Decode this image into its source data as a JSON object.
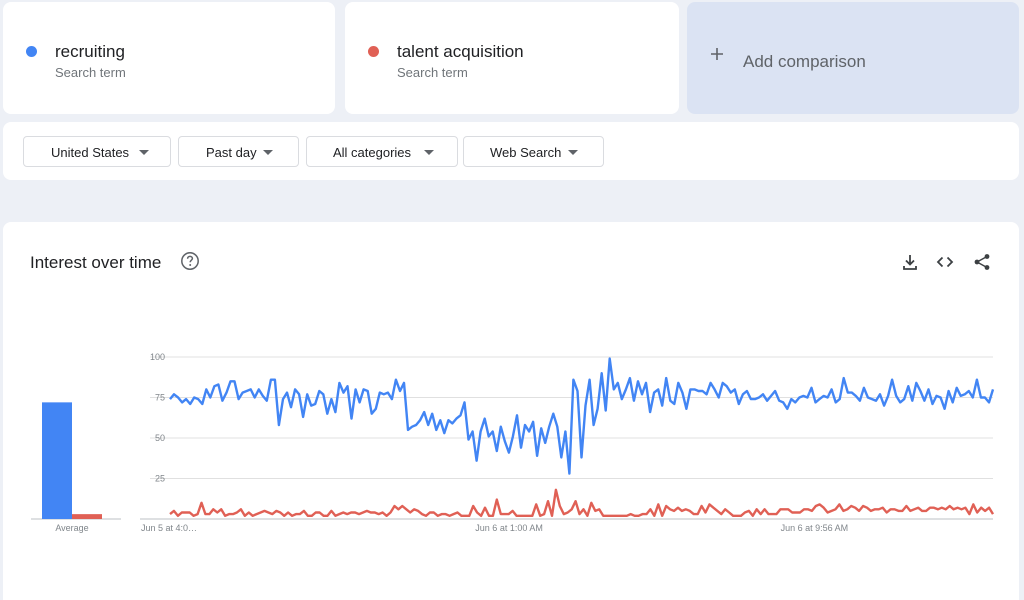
{
  "terms": [
    {
      "name": "recruiting",
      "subtitle": "Search term",
      "color": "#4285f4"
    },
    {
      "name": "talent acquisition",
      "subtitle": "Search term",
      "color": "#e06055"
    }
  ],
  "add_comparison": {
    "label": "Add comparison",
    "icon": "plus-icon"
  },
  "filters": {
    "region": "United States",
    "time": "Past day",
    "category": "All categories",
    "property": "Web Search"
  },
  "chart_panel": {
    "title": "Interest over time",
    "help_icon": "help-circle-icon",
    "actions": [
      "download-icon",
      "embed-icon",
      "share-icon"
    ]
  },
  "chart_data": {
    "type": "line",
    "ylim": [
      0,
      100
    ],
    "y_ticks": [
      25,
      50,
      75,
      100
    ],
    "x_tick_labels": [
      "Jun 5 at 4:0…",
      "Jun 6 at 1:00 AM",
      "Jun 6 at 9:56 AM"
    ],
    "x_tick_positions": [
      0,
      41.2,
      78.3
    ],
    "grid": true,
    "average": {
      "label": "Average",
      "values": [
        72,
        3
      ]
    },
    "series": [
      {
        "name": "recruiting",
        "color": "#4285f4",
        "values": [
          74,
          77,
          75,
          72,
          74,
          71,
          75,
          74,
          71,
          80,
          75,
          82,
          83,
          73,
          78,
          85,
          85,
          74,
          78,
          79,
          80,
          75,
          80,
          76,
          73,
          86,
          86,
          58,
          74,
          78,
          69,
          80,
          77,
          63,
          77,
          70,
          71,
          79,
          77,
          65,
          74,
          66,
          84,
          78,
          82,
          62,
          80,
          72,
          80,
          79,
          65,
          68,
          78,
          77,
          78,
          74,
          86,
          79,
          84,
          55,
          57,
          58,
          61,
          66,
          58,
          65,
          55,
          61,
          53,
          61,
          59,
          62,
          64,
          72,
          49,
          54,
          36,
          54,
          62,
          51,
          54,
          42,
          57,
          48,
          41,
          51,
          64,
          44,
          58,
          54,
          60,
          39,
          56,
          47,
          57,
          65,
          57,
          38,
          54,
          28,
          86,
          79,
          38,
          70,
          86,
          58,
          68,
          90,
          67,
          99,
          80,
          84,
          74,
          80,
          87,
          73,
          85,
          77,
          84,
          66,
          78,
          80,
          70,
          87,
          73,
          71,
          84,
          78,
          68,
          80,
          80,
          79,
          79,
          77,
          84,
          80,
          75,
          84,
          82,
          78,
          80,
          71,
          77,
          79,
          74,
          74,
          75,
          77,
          73,
          76,
          79,
          73,
          72,
          68,
          74,
          72,
          75,
          76,
          75,
          81,
          72,
          74,
          76,
          75,
          80,
          72,
          74,
          87,
          78,
          78,
          76,
          73,
          81,
          75,
          74,
          73,
          77,
          70,
          76,
          86,
          76,
          72,
          74,
          82,
          73,
          84,
          79,
          73,
          80,
          71,
          76,
          75,
          68,
          79,
          72,
          81,
          76,
          77,
          79,
          75,
          86,
          75,
          75,
          72,
          80
        ]
      },
      {
        "name": "talent acquisition",
        "color": "#e06055",
        "values": [
          3,
          5,
          2,
          4,
          4,
          4,
          2,
          3,
          10,
          3,
          3,
          6,
          4,
          6,
          2,
          3,
          3,
          4,
          6,
          2,
          4,
          2,
          3,
          4,
          5,
          4,
          3,
          5,
          4,
          2,
          4,
          2,
          3,
          3,
          5,
          2,
          2,
          4,
          4,
          2,
          2,
          5,
          2,
          3,
          4,
          3,
          4,
          4,
          3,
          4,
          5,
          4,
          4,
          3,
          4,
          2,
          4,
          8,
          6,
          8,
          6,
          4,
          6,
          5,
          3,
          2,
          4,
          4,
          2,
          3,
          3,
          2,
          3,
          4,
          2,
          2,
          2,
          8,
          4,
          2,
          7,
          2,
          2,
          12,
          3,
          3,
          3,
          5,
          2,
          2,
          2,
          2,
          2,
          9,
          2,
          3,
          11,
          2,
          18,
          8,
          3,
          4,
          6,
          11,
          3,
          6,
          2,
          10,
          5,
          6,
          2,
          2,
          2,
          2,
          2,
          2,
          2,
          3,
          2,
          2,
          3,
          3,
          6,
          2,
          9,
          2,
          8,
          6,
          5,
          7,
          5,
          6,
          5,
          3,
          3,
          8,
          4,
          9,
          7,
          5,
          3,
          6,
          4,
          2,
          2,
          2,
          4,
          5,
          2,
          6,
          3,
          6,
          3,
          3,
          3,
          6,
          6,
          6,
          4,
          4,
          4,
          6,
          6,
          5,
          8,
          9,
          7,
          4,
          5,
          6,
          9,
          5,
          6,
          8,
          7,
          5,
          8,
          7,
          5,
          6,
          6,
          7,
          4,
          6,
          6,
          5,
          5,
          8,
          5,
          6,
          7,
          5,
          5,
          7,
          7,
          6,
          7,
          6,
          8,
          6,
          7,
          6,
          7,
          3,
          9,
          4,
          7,
          5,
          7,
          3
        ]
      }
    ]
  }
}
